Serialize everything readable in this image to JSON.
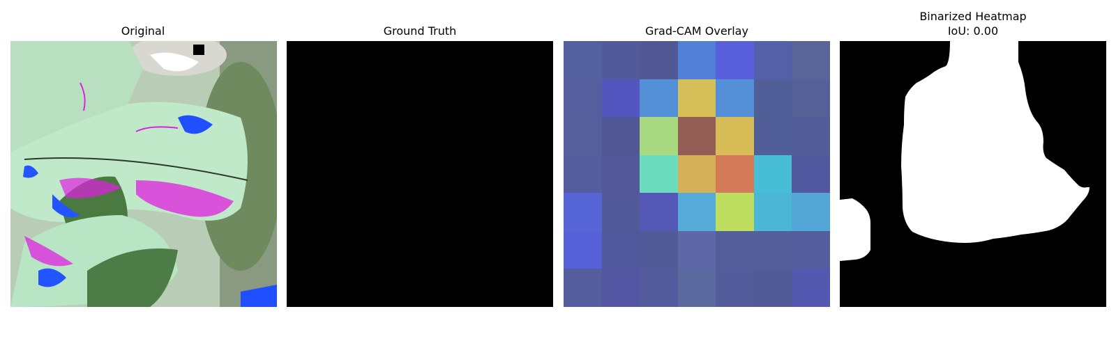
{
  "panels": [
    {
      "title": "Original"
    },
    {
      "title": "Ground Truth"
    },
    {
      "title": "Grad-CAM Overlay"
    },
    {
      "title": "Binarized Heatmap",
      "subtitle": "IoU: 0.00"
    }
  ],
  "gradcam_grid": [
    [
      "#55609f",
      "#525a9c",
      "#525896",
      "#5280d8",
      "#5a60dc",
      "#5460a8",
      "#5a6496"
    ],
    [
      "#555f9e",
      "#5456c0",
      "#5490d6",
      "#d6be58",
      "#5490d8",
      "#525e98",
      "#566096"
    ],
    [
      "#555f9c",
      "#525896",
      "#a8d880",
      "#925e56",
      "#d8bc58",
      "#525e98",
      "#525c98"
    ],
    [
      "#545e9e",
      "#52589a",
      "#6cdcbe",
      "#d6b058",
      "#d47a58",
      "#48bed6",
      "#5258a0"
    ],
    [
      "#5666d6",
      "#525a9a",
      "#5658b8",
      "#56aad8",
      "#bede60",
      "#4cb6d6",
      "#54a6d6"
    ],
    [
      "#5862d8",
      "#52589c",
      "#525a98",
      "#5e68a8",
      "#545e9a",
      "#545e98",
      "#545e9c"
    ],
    [
      "#545e9e",
      "#5456a4",
      "#535c9c",
      "#5a6a9e",
      "#545c9c",
      "#525a98",
      "#5458b0"
    ]
  ]
}
